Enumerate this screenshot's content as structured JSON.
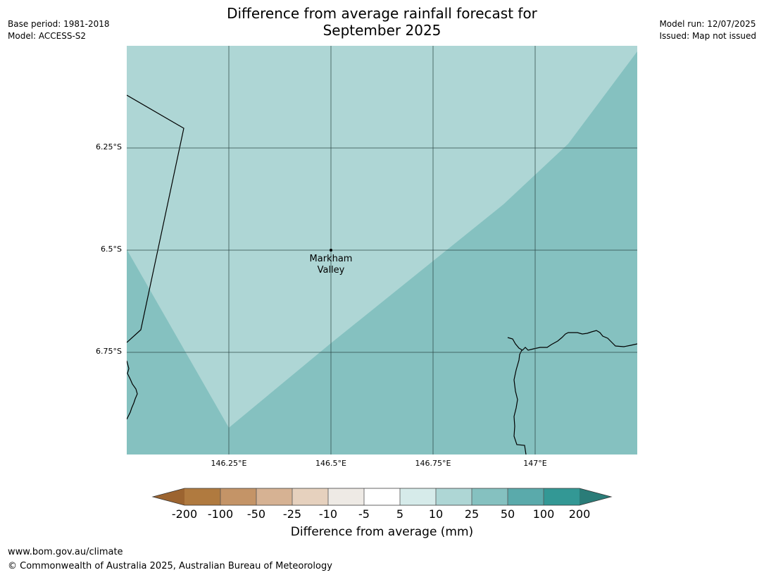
{
  "title_line1": "Difference from average rainfall forecast for",
  "title_line2": "September 2025",
  "base_period": "Base period: 1981-2018",
  "model": "Model: ACCESS-S2",
  "model_run": "Model run: 12/07/2025",
  "issued": "Issued: Map not issued",
  "lat_ticks": [
    "6.25°S",
    "6.5°S",
    "6.75°S"
  ],
  "lon_ticks": [
    "146.25°E",
    "146.5°E",
    "146.75°E",
    "147°E"
  ],
  "place": {
    "line1": "Markham",
    "line2": "Valley"
  },
  "colorbar": {
    "title": "Difference from average (mm)",
    "labels": [
      "-200",
      "-100",
      "-50",
      "-25",
      "-10",
      "-5",
      "5",
      "10",
      "25",
      "50",
      "100",
      "200"
    ],
    "colors": [
      "#9c6430",
      "#b07a3f",
      "#c49467",
      "#d6b293",
      "#e6d1be",
      "#eeeae5",
      "#ffffff",
      "#d6ebea",
      "#aed6d5",
      "#85c1c0",
      "#5aaaab",
      "#339895",
      "#2a7c78"
    ]
  },
  "map_colors": {
    "light": "#aed6d5",
    "dark": "#85c1c0"
  },
  "footer_url": "www.bom.gov.au/climate",
  "footer_copyright": "© Commonwealth of Australia 2025, Australian Bureau of Meteorology"
}
